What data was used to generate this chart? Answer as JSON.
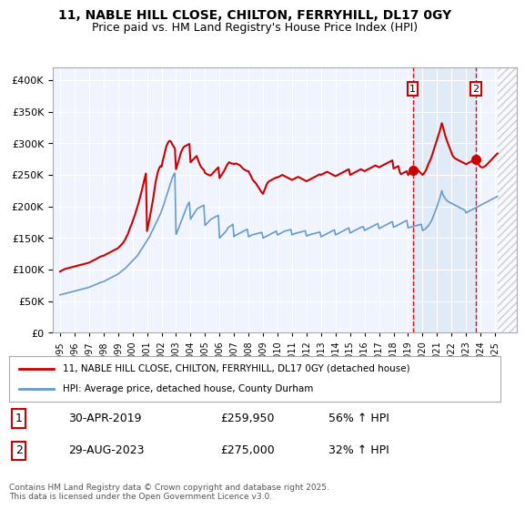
{
  "title1": "11, NABLE HILL CLOSE, CHILTON, FERRYHILL, DL17 0GY",
  "title2": "Price paid vs. HM Land Registry's House Price Index (HPI)",
  "legend_line1": "11, NABLE HILL CLOSE, CHILTON, FERRYHILL, DL17 0GY (detached house)",
  "legend_line2": "HPI: Average price, detached house, County Durham",
  "red_line_color": "#cc0000",
  "blue_line_color": "#6699cc",
  "background_color": "#ffffff",
  "plot_bg_color": "#f0f4ff",
  "grid_color": "#ffffff",
  "sale1_date": 2019.33,
  "sale1_label": "1",
  "sale1_price": 259950,
  "sale1_text": "30-APR-2019    £259,950    56% ↑ HPI",
  "sale2_date": 2023.67,
  "sale2_label": "2",
  "sale2_price": 275000,
  "sale2_text": "29-AUG-2023    £275,000    32% ↑ HPI",
  "footnote": "Contains HM Land Registry data © Crown copyright and database right 2025.\nThis data is licensed under the Open Government Licence v3.0.",
  "ylim_min": 0,
  "ylim_max": 420000,
  "xlim_min": 1994.5,
  "xlim_max": 2026.5,
  "hpi_years": [
    1995,
    1995.08,
    1995.17,
    1995.25,
    1995.33,
    1995.42,
    1995.5,
    1995.58,
    1995.67,
    1995.75,
    1995.83,
    1995.92,
    1996,
    1996.08,
    1996.17,
    1996.25,
    1996.33,
    1996.42,
    1996.5,
    1996.58,
    1996.67,
    1996.75,
    1996.83,
    1996.92,
    1997,
    1997.08,
    1997.17,
    1997.25,
    1997.33,
    1997.42,
    1997.5,
    1997.58,
    1997.67,
    1997.75,
    1997.83,
    1997.92,
    1998,
    1998.08,
    1998.17,
    1998.25,
    1998.33,
    1998.42,
    1998.5,
    1998.58,
    1998.67,
    1998.75,
    1998.83,
    1998.92,
    1999,
    1999.08,
    1999.17,
    1999.25,
    1999.33,
    1999.42,
    1999.5,
    1999.58,
    1999.67,
    1999.75,
    1999.83,
    1999.92,
    2000,
    2000.08,
    2000.17,
    2000.25,
    2000.33,
    2000.42,
    2000.5,
    2000.58,
    2000.67,
    2000.75,
    2000.83,
    2000.92,
    2001,
    2001.08,
    2001.17,
    2001.25,
    2001.33,
    2001.42,
    2001.5,
    2001.58,
    2001.67,
    2001.75,
    2001.83,
    2001.92,
    2002,
    2002.08,
    2002.17,
    2002.25,
    2002.33,
    2002.42,
    2002.5,
    2002.58,
    2002.67,
    2002.75,
    2002.83,
    2002.92,
    2003,
    2003.08,
    2003.17,
    2003.25,
    2003.33,
    2003.42,
    2003.5,
    2003.58,
    2003.67,
    2003.75,
    2003.83,
    2003.92,
    2004,
    2004.08,
    2004.17,
    2004.25,
    2004.33,
    2004.42,
    2004.5,
    2004.58,
    2004.67,
    2004.75,
    2004.83,
    2004.92,
    2005,
    2005.08,
    2005.17,
    2005.25,
    2005.33,
    2005.42,
    2005.5,
    2005.58,
    2005.67,
    2005.75,
    2005.83,
    2005.92,
    2006,
    2006.08,
    2006.17,
    2006.25,
    2006.33,
    2006.42,
    2006.5,
    2006.58,
    2006.67,
    2006.75,
    2006.83,
    2006.92,
    2007,
    2007.08,
    2007.17,
    2007.25,
    2007.33,
    2007.42,
    2007.5,
    2007.58,
    2007.67,
    2007.75,
    2007.83,
    2007.92,
    2008,
    2008.08,
    2008.17,
    2008.25,
    2008.33,
    2008.42,
    2008.5,
    2008.58,
    2008.67,
    2008.75,
    2008.83,
    2008.92,
    2009,
    2009.08,
    2009.17,
    2009.25,
    2009.33,
    2009.42,
    2009.5,
    2009.58,
    2009.67,
    2009.75,
    2009.83,
    2009.92,
    2010,
    2010.08,
    2010.17,
    2010.25,
    2010.33,
    2010.42,
    2010.5,
    2010.58,
    2010.67,
    2010.75,
    2010.83,
    2010.92,
    2011,
    2011.08,
    2011.17,
    2011.25,
    2011.33,
    2011.42,
    2011.5,
    2011.58,
    2011.67,
    2011.75,
    2011.83,
    2011.92,
    2012,
    2012.08,
    2012.17,
    2012.25,
    2012.33,
    2012.42,
    2012.5,
    2012.58,
    2012.67,
    2012.75,
    2012.83,
    2012.92,
    2013,
    2013.08,
    2013.17,
    2013.25,
    2013.33,
    2013.42,
    2013.5,
    2013.58,
    2013.67,
    2013.75,
    2013.83,
    2013.92,
    2014,
    2014.08,
    2014.17,
    2014.25,
    2014.33,
    2014.42,
    2014.5,
    2014.58,
    2014.67,
    2014.75,
    2014.83,
    2014.92,
    2015,
    2015.08,
    2015.17,
    2015.25,
    2015.33,
    2015.42,
    2015.5,
    2015.58,
    2015.67,
    2015.75,
    2015.83,
    2015.92,
    2016,
    2016.08,
    2016.17,
    2016.25,
    2016.33,
    2016.42,
    2016.5,
    2016.58,
    2016.67,
    2016.75,
    2016.83,
    2016.92,
    2017,
    2017.08,
    2017.17,
    2017.25,
    2017.33,
    2017.42,
    2017.5,
    2017.58,
    2017.67,
    2017.75,
    2017.83,
    2017.92,
    2018,
    2018.08,
    2018.17,
    2018.25,
    2018.33,
    2018.42,
    2018.5,
    2018.58,
    2018.67,
    2018.75,
    2018.83,
    2018.92,
    2019,
    2019.08,
    2019.17,
    2019.25,
    2019.33,
    2019.42,
    2019.5,
    2019.58,
    2019.67,
    2019.75,
    2019.83,
    2019.92,
    2020,
    2020.08,
    2020.17,
    2020.25,
    2020.33,
    2020.42,
    2020.5,
    2020.58,
    2020.67,
    2020.75,
    2020.83,
    2020.92,
    2021,
    2021.08,
    2021.17,
    2021.25,
    2021.33,
    2021.42,
    2021.5,
    2021.58,
    2021.67,
    2021.75,
    2021.83,
    2021.92,
    2022,
    2022.08,
    2022.17,
    2022.25,
    2022.33,
    2022.42,
    2022.5,
    2022.58,
    2022.67,
    2022.75,
    2022.83,
    2022.92,
    2023,
    2023.08,
    2023.17,
    2023.25,
    2023.33,
    2023.42,
    2023.5,
    2023.58,
    2023.67,
    2023.75,
    2023.83,
    2023.92,
    2024,
    2024.08,
    2024.17,
    2024.25,
    2024.33,
    2024.42,
    2024.5,
    2024.58,
    2024.67,
    2024.75,
    2024.83,
    2024.92,
    2025,
    2025.08,
    2025.17
  ],
  "hpi_values": [
    60000,
    60500,
    61000,
    61500,
    62000,
    62500,
    63000,
    63500,
    64000,
    64500,
    65000,
    65500,
    66000,
    66500,
    67000,
    67500,
    68000,
    68500,
    69000,
    69500,
    70000,
    70500,
    71000,
    71500,
    72000,
    72800,
    73600,
    74400,
    75200,
    76000,
    76800,
    77600,
    78400,
    79200,
    80000,
    80500,
    81000,
    82000,
    83000,
    84000,
    85000,
    86000,
    87000,
    88000,
    89000,
    90000,
    91000,
    92000,
    93000,
    94500,
    96000,
    97500,
    99000,
    100500,
    102000,
    104000,
    106000,
    108000,
    110000,
    112000,
    114000,
    116000,
    118000,
    120000,
    122000,
    125000,
    128000,
    131000,
    134000,
    137000,
    140000,
    143000,
    146000,
    149000,
    152000,
    156000,
    160000,
    164000,
    168000,
    172000,
    176000,
    180000,
    184000,
    188000,
    193000,
    198000,
    204000,
    210000,
    216000,
    222000,
    228000,
    234000,
    240000,
    246000,
    250000,
    253000,
    156000,
    160000,
    165000,
    170000,
    175000,
    180000,
    185000,
    190000,
    195000,
    200000,
    204000,
    207000,
    180000,
    183000,
    186000,
    189000,
    192000,
    195000,
    197000,
    198000,
    199000,
    200000,
    201000,
    202000,
    170000,
    172000,
    174000,
    176000,
    178000,
    180000,
    181000,
    182000,
    183000,
    184000,
    185000,
    186000,
    150000,
    152000,
    154000,
    156000,
    158000,
    160000,
    163000,
    166000,
    168000,
    169000,
    170000,
    172000,
    152000,
    154000,
    155000,
    156000,
    157000,
    158000,
    159000,
    160000,
    161000,
    162000,
    163000,
    164000,
    152000,
    153000,
    154000,
    155000,
    155500,
    156000,
    156500,
    157000,
    157500,
    158000,
    158500,
    159000,
    150000,
    151000,
    152000,
    153000,
    154000,
    155000,
    156000,
    157000,
    158000,
    159000,
    160000,
    161000,
    155000,
    156000,
    157000,
    158000,
    159000,
    160000,
    161000,
    161500,
    162000,
    162500,
    163000,
    163500,
    155000,
    156000,
    157000,
    157500,
    158000,
    158500,
    159000,
    159500,
    160000,
    160500,
    161000,
    161500,
    153000,
    154000,
    155000,
    155500,
    156000,
    156500,
    157000,
    157500,
    158000,
    158500,
    159000,
    159500,
    152000,
    153000,
    154000,
    155000,
    156000,
    157000,
    158000,
    159000,
    160000,
    161000,
    162000,
    163000,
    155000,
    156000,
    157000,
    158000,
    159000,
    160000,
    161000,
    162000,
    163000,
    164000,
    165000,
    166000,
    158000,
    159000,
    160000,
    161000,
    162000,
    163000,
    164000,
    165000,
    166000,
    167000,
    167500,
    168000,
    162000,
    163000,
    164000,
    165000,
    166000,
    167000,
    168000,
    169000,
    170000,
    171000,
    172000,
    173000,
    165000,
    166000,
    167000,
    168000,
    169000,
    170000,
    171000,
    172000,
    173000,
    174000,
    175000,
    176000,
    167000,
    168000,
    169000,
    170000,
    171000,
    172000,
    173000,
    174000,
    175000,
    176000,
    177000,
    178000,
    166300,
    166800,
    167300,
    167800,
    168300,
    168800,
    169300,
    169800,
    170300,
    170800,
    171300,
    171800,
    162000,
    163000,
    164000,
    166000,
    168000,
    170000,
    173000,
    176000,
    180000,
    185000,
    190000,
    195000,
    200000,
    206000,
    212000,
    218000,
    225000,
    218000,
    215000,
    212000,
    210000,
    208000,
    207000,
    206000,
    205000,
    204000,
    203000,
    202000,
    201000,
    200000,
    199000,
    198000,
    197000,
    196000,
    195000,
    194000,
    190000,
    191000,
    192000,
    193000,
    194000,
    195000,
    196000,
    197000,
    198000,
    199000,
    200000,
    201000,
    202000,
    203000,
    204000,
    205000,
    206000,
    207000,
    208000,
    209000,
    210000,
    211000,
    212000,
    213000,
    214000,
    215000,
    216000
  ],
  "red_years": [
    1995,
    1995.08,
    1995.17,
    1995.25,
    1995.33,
    1995.42,
    1995.5,
    1995.58,
    1995.67,
    1995.75,
    1995.83,
    1995.92,
    1996,
    1996.08,
    1996.17,
    1996.25,
    1996.33,
    1996.42,
    1996.5,
    1996.58,
    1996.67,
    1996.75,
    1996.83,
    1996.92,
    1997,
    1997.08,
    1997.17,
    1997.25,
    1997.33,
    1997.42,
    1997.5,
    1997.58,
    1997.67,
    1997.75,
    1997.83,
    1997.92,
    1998,
    1998.08,
    1998.17,
    1998.25,
    1998.33,
    1998.42,
    1998.5,
    1998.58,
    1998.67,
    1998.75,
    1998.83,
    1998.92,
    1999,
    1999.08,
    1999.17,
    1999.25,
    1999.33,
    1999.42,
    1999.5,
    1999.58,
    1999.67,
    1999.75,
    1999.83,
    1999.92,
    2000,
    2000.08,
    2000.17,
    2000.25,
    2000.33,
    2000.42,
    2000.5,
    2000.58,
    2000.67,
    2000.75,
    2000.83,
    2000.92,
    2001,
    2001.08,
    2001.17,
    2001.25,
    2001.33,
    2001.42,
    2001.5,
    2001.58,
    2001.67,
    2001.75,
    2001.83,
    2001.92,
    2002,
    2002.08,
    2002.17,
    2002.25,
    2002.33,
    2002.42,
    2002.5,
    2002.58,
    2002.67,
    2002.75,
    2002.83,
    2002.92,
    2003,
    2003.08,
    2003.17,
    2003.25,
    2003.33,
    2003.42,
    2003.5,
    2003.58,
    2003.67,
    2003.75,
    2003.83,
    2003.92,
    2004,
    2004.08,
    2004.17,
    2004.25,
    2004.33,
    2004.42,
    2004.5,
    2004.58,
    2004.67,
    2004.75,
    2004.83,
    2004.92,
    2005,
    2005.08,
    2005.17,
    2005.25,
    2005.33,
    2005.42,
    2005.5,
    2005.58,
    2005.67,
    2005.75,
    2005.83,
    2005.92,
    2006,
    2006.08,
    2006.17,
    2006.25,
    2006.33,
    2006.42,
    2006.5,
    2006.58,
    2006.67,
    2006.75,
    2006.83,
    2006.92,
    2007,
    2007.08,
    2007.17,
    2007.25,
    2007.33,
    2007.42,
    2007.5,
    2007.58,
    2007.67,
    2007.75,
    2007.83,
    2007.92,
    2008,
    2008.08,
    2008.17,
    2008.25,
    2008.33,
    2008.42,
    2008.5,
    2008.58,
    2008.67,
    2008.75,
    2008.83,
    2008.92,
    2009,
    2009.08,
    2009.17,
    2009.25,
    2009.33,
    2009.42,
    2009.5,
    2009.58,
    2009.67,
    2009.75,
    2009.83,
    2009.92,
    2010,
    2010.08,
    2010.17,
    2010.25,
    2010.33,
    2010.42,
    2010.5,
    2010.58,
    2010.67,
    2010.75,
    2010.83,
    2010.92,
    2011,
    2011.08,
    2011.17,
    2011.25,
    2011.33,
    2011.42,
    2011.5,
    2011.58,
    2011.67,
    2011.75,
    2011.83,
    2011.92,
    2012,
    2012.08,
    2012.17,
    2012.25,
    2012.33,
    2012.42,
    2012.5,
    2012.58,
    2012.67,
    2012.75,
    2012.83,
    2012.92,
    2013,
    2013.08,
    2013.17,
    2013.25,
    2013.33,
    2013.42,
    2013.5,
    2013.58,
    2013.67,
    2013.75,
    2013.83,
    2013.92,
    2014,
    2014.08,
    2014.17,
    2014.25,
    2014.33,
    2014.42,
    2014.5,
    2014.58,
    2014.67,
    2014.75,
    2014.83,
    2014.92,
    2015,
    2015.08,
    2015.17,
    2015.25,
    2015.33,
    2015.42,
    2015.5,
    2015.58,
    2015.67,
    2015.75,
    2015.83,
    2015.92,
    2016,
    2016.08,
    2016.17,
    2016.25,
    2016.33,
    2016.42,
    2016.5,
    2016.58,
    2016.67,
    2016.75,
    2016.83,
    2016.92,
    2017,
    2017.08,
    2017.17,
    2017.25,
    2017.33,
    2017.42,
    2017.5,
    2017.58,
    2017.67,
    2017.75,
    2017.83,
    2017.92,
    2018,
    2018.08,
    2018.17,
    2018.25,
    2018.33,
    2018.42,
    2018.5,
    2018.58,
    2018.67,
    2018.75,
    2018.83,
    2018.92,
    2019,
    2019.08,
    2019.17,
    2019.25,
    2019.33,
    2019.42,
    2019.5,
    2019.58,
    2019.67,
    2019.75,
    2019.83,
    2019.92,
    2020,
    2020.08,
    2020.17,
    2020.25,
    2020.33,
    2020.42,
    2020.5,
    2020.58,
    2020.67,
    2020.75,
    2020.83,
    2020.92,
    2021,
    2021.08,
    2021.17,
    2021.25,
    2021.33,
    2021.42,
    2021.5,
    2021.58,
    2021.67,
    2021.75,
    2021.83,
    2021.92,
    2022,
    2022.08,
    2022.17,
    2022.25,
    2022.33,
    2022.42,
    2022.5,
    2022.58,
    2022.67,
    2022.75,
    2022.83,
    2022.92,
    2023,
    2023.08,
    2023.17,
    2023.25,
    2023.33,
    2023.42,
    2023.5,
    2023.58,
    2023.67,
    2023.75,
    2023.83,
    2023.92,
    2024,
    2024.08,
    2024.17,
    2024.25,
    2024.33,
    2024.42,
    2024.5,
    2024.58,
    2024.67,
    2024.75,
    2024.83,
    2024.92,
    2025,
    2025.08,
    2025.17
  ],
  "red_values": [
    97000,
    98000,
    99000,
    100000,
    101000,
    101500,
    102000,
    102500,
    103000,
    103500,
    104000,
    104500,
    105000,
    105500,
    106000,
    106500,
    107000,
    107500,
    108000,
    108500,
    109000,
    109500,
    110000,
    110500,
    111000,
    112000,
    113000,
    114000,
    115000,
    116000,
    117000,
    118000,
    119000,
    120000,
    121000,
    121500,
    122000,
    123000,
    124000,
    125000,
    126000,
    127000,
    128000,
    129000,
    130000,
    131000,
    132000,
    133000,
    134000,
    136000,
    138000,
    140000,
    142000,
    145000,
    148000,
    152000,
    156000,
    161000,
    166000,
    171000,
    176000,
    181000,
    187000,
    193000,
    199000,
    206000,
    213000,
    220000,
    228000,
    236000,
    244000,
    252000,
    161000,
    170000,
    180000,
    190000,
    200000,
    212000,
    225000,
    237000,
    247000,
    255000,
    260000,
    264000,
    263000,
    272000,
    280000,
    288000,
    295000,
    300000,
    303000,
    304000,
    302000,
    298000,
    295000,
    292000,
    259000,
    265000,
    272000,
    278000,
    285000,
    290000,
    293000,
    295000,
    296000,
    297000,
    298000,
    299000,
    270000,
    272000,
    274000,
    276000,
    278000,
    280000,
    275000,
    270000,
    265000,
    262000,
    260000,
    258000,
    253000,
    252000,
    251000,
    250000,
    249000,
    250000,
    252000,
    254000,
    256000,
    258000,
    260000,
    262000,
    245000,
    248000,
    251000,
    254000,
    257000,
    261000,
    265000,
    268000,
    270000,
    269000,
    268000,
    268000,
    267000,
    268000,
    268000,
    267000,
    266000,
    265000,
    263000,
    261000,
    259000,
    258000,
    257000,
    256000,
    256000,
    252000,
    248000,
    244000,
    241000,
    239000,
    237000,
    234000,
    231000,
    228000,
    225000,
    222000,
    220000,
    225000,
    230000,
    235000,
    238000,
    240000,
    241000,
    242000,
    243000,
    244000,
    245000,
    246000,
    246000,
    247000,
    248000,
    249000,
    250000,
    249000,
    248000,
    247000,
    246000,
    245000,
    244000,
    243000,
    242000,
    243000,
    244000,
    245000,
    246000,
    247000,
    246000,
    245000,
    244000,
    243000,
    242000,
    241000,
    240000,
    241000,
    242000,
    243000,
    244000,
    245000,
    246000,
    247000,
    248000,
    249000,
    250000,
    251000,
    250000,
    251000,
    252000,
    253000,
    254000,
    255000,
    254000,
    253000,
    252000,
    251000,
    250000,
    249000,
    248000,
    249000,
    250000,
    251000,
    252000,
    253000,
    254000,
    255000,
    256000,
    257000,
    258000,
    259000,
    250000,
    251000,
    252000,
    253000,
    254000,
    255000,
    256000,
    257000,
    258000,
    259000,
    258000,
    257000,
    256000,
    257000,
    258000,
    259000,
    260000,
    261000,
    262000,
    263000,
    264000,
    265000,
    264000,
    263000,
    262000,
    263000,
    264000,
    265000,
    266000,
    267000,
    268000,
    269000,
    270000,
    271000,
    272000,
    273000,
    260000,
    261000,
    262000,
    263000,
    264000,
    255000,
    251000,
    252000,
    253000,
    254000,
    255000,
    256000,
    250000,
    252000,
    254000,
    256000,
    258000,
    260000,
    260000,
    260000,
    258000,
    256000,
    254000,
    252000,
    250000,
    252000,
    255000,
    258000,
    263000,
    268000,
    272000,
    276000,
    282000,
    288000,
    294000,
    300000,
    306000,
    312000,
    318000,
    325000,
    332000,
    325000,
    318000,
    311000,
    305000,
    300000,
    295000,
    290000,
    285000,
    280000,
    278000,
    276000,
    275000,
    274000,
    273000,
    272000,
    271000,
    270000,
    269000,
    268000,
    267000,
    268000,
    269000,
    270000,
    271000,
    272000,
    273000,
    274000,
    275000,
    270000,
    267000,
    265000,
    263000,
    262000,
    262000,
    263000,
    264000,
    266000,
    268000,
    270000,
    272000,
    274000,
    276000,
    278000,
    280000,
    282000,
    284000
  ]
}
